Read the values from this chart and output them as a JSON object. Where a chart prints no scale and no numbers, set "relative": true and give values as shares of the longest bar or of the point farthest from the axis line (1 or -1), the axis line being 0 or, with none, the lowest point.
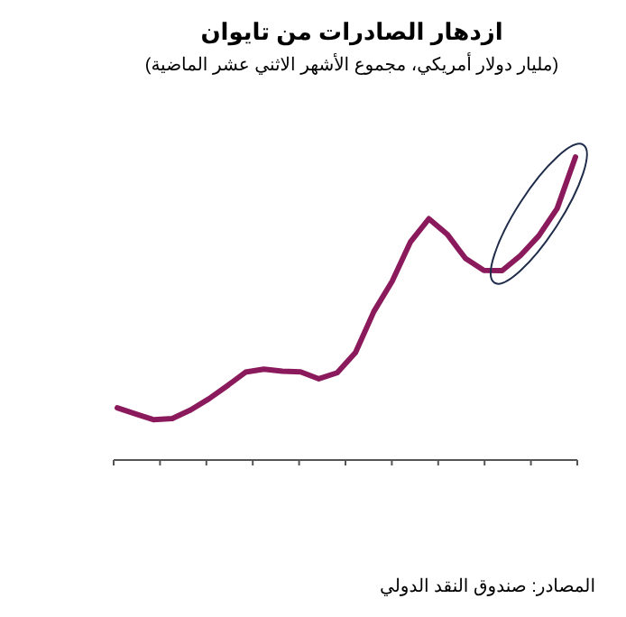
{
  "chart_data": {
    "type": "line",
    "relative": true,
    "title": "ازدهار الصادرات من تايوان",
    "subtitle": "(مليار دولار أمريكي، مجموع الأشهر الاثني عشر الماضية)",
    "annotations": [
      "المصادر: صندوق النقد الدولي"
    ],
    "categories": [
      null,
      null,
      null,
      null,
      null,
      null,
      null,
      null,
      null,
      null,
      null,
      null,
      null,
      null,
      null,
      null,
      null,
      null,
      null,
      null,
      null,
      null,
      null,
      null,
      null,
      null
    ],
    "series": [
      {
        "color": "#8b1a5c",
        "values": [
          0.172,
          0.152,
          0.133,
          0.137,
          0.165,
          0.202,
          0.245,
          0.29,
          0.3,
          0.293,
          0.291,
          0.268,
          0.288,
          0.355,
          0.49,
          0.59,
          0.72,
          0.796,
          0.745,
          0.665,
          0.626,
          0.625,
          0.675,
          0.74,
          0.83,
          1.0
        ]
      }
    ]
  }
}
